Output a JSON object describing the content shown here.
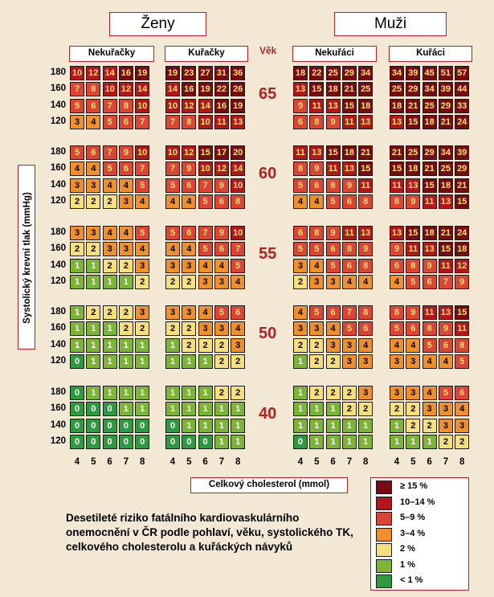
{
  "headers": {
    "women": "Ženy",
    "men": "Muži",
    "women_nonsmokers": "Nekuřačky",
    "women_smokers": "Kuřačky",
    "men_nonsmokers": "Nekuřáci",
    "men_smokers": "Kuřáci",
    "age_header": "Věk"
  },
  "y_axis_label": "Systolický krevní tlak (mmHg)",
  "x_axis_label": "Celkový cholesterol (mmol)",
  "description": "Desetileté riziko fatálního kardiovaskulárního onemocnění v ČR podle pohlaví, věku, systolického TK, celkového cholesterolu a kuřáckých návyků",
  "legend": [
    {
      "label": "≥ 15 %",
      "color": "#7a0a12"
    },
    {
      "label": "10–14 %",
      "color": "#b5161d"
    },
    {
      "label": "5–9 %",
      "color": "#dd4436"
    },
    {
      "label": "3–4 %",
      "color": "#f0902a"
    },
    {
      "label": "2 %",
      "color": "#f7e07a"
    },
    {
      "label": "1 %",
      "color": "#7cb433"
    },
    {
      "label": "< 1 %",
      "color": "#2c9a3e"
    }
  ],
  "chart_data": {
    "type": "heatmap",
    "ages": [
      "65",
      "60",
      "55",
      "50",
      "40"
    ],
    "bp_labels": [
      "180",
      "160",
      "140",
      "120"
    ],
    "chol_labels": [
      "4",
      "5",
      "6",
      "7",
      "8"
    ],
    "groups": [
      "Nekuřačky",
      "Kuřačky",
      "Nekuřáci",
      "Kuřáci"
    ],
    "values": {
      "65": [
        [
          [
            10,
            12,
            14,
            16,
            19
          ],
          [
            7,
            8,
            10,
            12,
            14
          ],
          [
            5,
            6,
            7,
            8,
            10
          ],
          [
            3,
            4,
            5,
            6,
            7
          ]
        ],
        [
          [
            19,
            23,
            27,
            31,
            36
          ],
          [
            14,
            16,
            19,
            22,
            26
          ],
          [
            10,
            12,
            14,
            16,
            19
          ],
          [
            7,
            8,
            10,
            11,
            13
          ]
        ],
        [
          [
            18,
            22,
            25,
            29,
            34
          ],
          [
            13,
            15,
            18,
            21,
            25
          ],
          [
            9,
            11,
            13,
            15,
            18
          ],
          [
            6,
            8,
            9,
            11,
            13
          ]
        ],
        [
          [
            34,
            39,
            45,
            51,
            57
          ],
          [
            25,
            29,
            34,
            39,
            44
          ],
          [
            18,
            21,
            25,
            29,
            33
          ],
          [
            13,
            15,
            18,
            21,
            24
          ]
        ]
      ],
      "60": [
        [
          [
            5,
            6,
            7,
            9,
            10
          ],
          [
            4,
            4,
            5,
            6,
            7
          ],
          [
            3,
            3,
            4,
            4,
            5
          ],
          [
            2,
            2,
            2,
            3,
            4
          ]
        ],
        [
          [
            10,
            12,
            15,
            17,
            20
          ],
          [
            7,
            9,
            10,
            12,
            14
          ],
          [
            5,
            6,
            7,
            9,
            10
          ],
          [
            4,
            4,
            5,
            6,
            8
          ]
        ],
        [
          [
            11,
            13,
            15,
            18,
            21
          ],
          [
            8,
            9,
            11,
            13,
            15
          ],
          [
            5,
            6,
            8,
            9,
            11
          ],
          [
            4,
            4,
            5,
            6,
            8
          ]
        ],
        [
          [
            21,
            25,
            29,
            34,
            39
          ],
          [
            15,
            18,
            21,
            25,
            29
          ],
          [
            11,
            13,
            15,
            18,
            21
          ],
          [
            8,
            9,
            11,
            13,
            15
          ]
        ]
      ],
      "55": [
        [
          [
            3,
            3,
            4,
            4,
            5
          ],
          [
            2,
            2,
            3,
            3,
            4
          ],
          [
            1,
            1,
            2,
            2,
            3
          ],
          [
            1,
            1,
            1,
            1,
            2
          ]
        ],
        [
          [
            5,
            6,
            7,
            9,
            10
          ],
          [
            4,
            4,
            5,
            6,
            7
          ],
          [
            3,
            3,
            4,
            4,
            5
          ],
          [
            2,
            2,
            3,
            3,
            4
          ]
        ],
        [
          [
            6,
            8,
            9,
            11,
            13
          ],
          [
            5,
            5,
            6,
            8,
            9
          ],
          [
            3,
            4,
            5,
            6,
            8
          ],
          [
            2,
            3,
            3,
            4,
            4
          ]
        ],
        [
          [
            13,
            15,
            18,
            21,
            24
          ],
          [
            9,
            11,
            13,
            15,
            18
          ],
          [
            6,
            8,
            9,
            11,
            12
          ],
          [
            4,
            5,
            6,
            7,
            9
          ]
        ]
      ],
      "50": [
        [
          [
            1,
            2,
            2,
            2,
            3
          ],
          [
            1,
            1,
            1,
            2,
            2
          ],
          [
            1,
            1,
            1,
            1,
            1
          ],
          [
            0,
            1,
            1,
            1,
            1
          ]
        ],
        [
          [
            3,
            3,
            4,
            5,
            6
          ],
          [
            2,
            2,
            3,
            3,
            4
          ],
          [
            1,
            2,
            2,
            2,
            3
          ],
          [
            1,
            1,
            1,
            2,
            2
          ]
        ],
        [
          [
            4,
            5,
            6,
            7,
            8
          ],
          [
            3,
            3,
            4,
            5,
            6
          ],
          [
            2,
            2,
            3,
            3,
            4
          ],
          [
            1,
            2,
            2,
            3,
            3
          ]
        ],
        [
          [
            8,
            9,
            11,
            13,
            15
          ],
          [
            5,
            6,
            8,
            9,
            11
          ],
          [
            4,
            4,
            5,
            6,
            8
          ],
          [
            3,
            3,
            4,
            4,
            5
          ]
        ]
      ],
      "40": [
        [
          [
            0,
            1,
            1,
            1,
            1
          ],
          [
            0,
            0,
            0,
            1,
            1
          ],
          [
            0,
            0,
            0,
            0,
            0
          ],
          [
            0,
            0,
            0,
            0,
            0
          ]
        ],
        [
          [
            1,
            1,
            1,
            2,
            2
          ],
          [
            1,
            1,
            1,
            1,
            1
          ],
          [
            0,
            1,
            1,
            1,
            1
          ],
          [
            0,
            0,
            0,
            1,
            1
          ]
        ],
        [
          [
            1,
            2,
            2,
            2,
            3
          ],
          [
            1,
            1,
            1,
            2,
            2
          ],
          [
            1,
            1,
            1,
            1,
            1
          ],
          [
            0,
            1,
            1,
            1,
            1
          ]
        ],
        [
          [
            3,
            3,
            4,
            5,
            6
          ],
          [
            2,
            2,
            3,
            3,
            4
          ],
          [
            1,
            2,
            2,
            3,
            3
          ],
          [
            1,
            1,
            1,
            2,
            2
          ]
        ]
      ]
    }
  }
}
